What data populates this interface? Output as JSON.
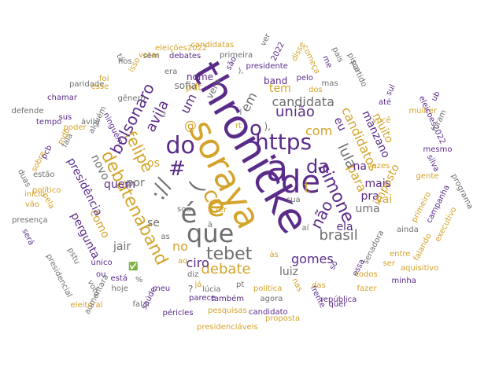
{
  "colors": {
    "gold": "#d4a32a",
    "purple": "#5b2b8a",
    "gray": "#6e6e6e"
  },
  "words": [
    {
      "t": "thronicke",
      "c": "purple"
    },
    {
      "t": "soraya",
      "c": "gold"
    },
    {
      "t": "a",
      "c": "purple"
    },
    {
      "t": "de",
      "c": "purple"
    },
    {
      "t": "é",
      "c": "gray"
    },
    {
      "t": "e",
      "c": "gold"
    },
    {
      "t": "que",
      "c": "gray"
    },
    {
      "t": "do",
      "c": "purple"
    },
    {
      "t": "https",
      "c": "purple"
    },
    {
      "t": "debatenaband",
      "c": "gold"
    },
    {
      "t": "felipe",
      "c": "gold"
    },
    {
      "t": "co",
      "c": "gold"
    },
    {
      "t": "da",
      "c": "purple"
    },
    {
      "t": "simone",
      "c": "purple"
    },
    {
      "t": "t",
      "c": "gold"
    },
    {
      "t": "o",
      "c": "purple"
    },
    {
      "t": "tebet",
      "c": "gray"
    },
    {
      "t": "bolsonaro",
      "c": "purple"
    },
    {
      "t": "#",
      "c": "purple"
    },
    {
      "t": "://",
      "c": "gray"
    },
    {
      "t": "(",
      "c": "gray"
    },
    {
      "t": "não",
      "c": "purple"
    },
    {
      "t": "lula",
      "c": "gray"
    },
    {
      "t": "brasil",
      "c": "gray"
    },
    {
      "t": "debate",
      "c": "gold"
    },
    {
      "t": "avila",
      "c": "purple"
    },
    {
      "t": "candidatos",
      "c": "gold"
    },
    {
      "t": "união",
      "c": "purple"
    },
    {
      "t": "candidata",
      "c": "gray"
    },
    {
      "t": "com",
      "c": "gold"
    },
    {
      "t": "para",
      "c": "gold"
    },
    {
      "t": "ciro",
      "c": "purple"
    },
    {
      "t": "gomes",
      "c": "purple"
    },
    {
      "t": "no",
      "c": "gold"
    },
    {
      "t": "um",
      "c": "purple"
    },
    {
      "t": "em",
      "c": "gray"
    },
    {
      "t": "quem",
      "c": "purple"
    },
    {
      "t": "novo",
      "c": "gray"
    },
    {
      "t": "@",
      "c": "gold"
    },
    {
      "t": "na",
      "c": "purple"
    },
    {
      "t": "eu",
      "c": "purple"
    },
    {
      "t": "uma",
      "c": "gray"
    },
    {
      "t": "pra",
      "c": "purple"
    },
    {
      "t": "mais",
      "c": "purple"
    },
    {
      "t": "ela",
      "c": "purple"
    },
    {
      "t": "luiz",
      "c": "gray"
    },
    {
      "t": "jair",
      "c": "gray"
    },
    {
      "t": "se",
      "c": "gray"
    },
    {
      "t": "por",
      "c": "gray"
    },
    {
      "t": "os",
      "c": "gold"
    },
    {
      "t": "tem",
      "c": "gold"
    },
    {
      "t": "vai",
      "c": "gold"
    },
    {
      "t": "como",
      "c": "gold"
    },
    {
      "t": "pergunta",
      "c": "purple"
    },
    {
      "t": "presidência",
      "c": "purple"
    },
    {
      "t": "imposto",
      "c": "gold"
    },
    {
      "t": "manzano",
      "c": "purple"
    },
    {
      "t": "muito",
      "c": "gold"
    },
    {
      "t": "?",
      "c": "gray"
    },
    {
      "t": "),",
      "c": "gray"
    },
    {
      "t": "pdt",
      "c": "gold"
    },
    {
      "t": "band",
      "c": "purple"
    },
    {
      "t": "vera",
      "c": "gray"
    },
    {
      "t": "nome",
      "c": "purple"
    },
    {
      "t": "sofia",
      "c": "gray"
    },
    {
      "t": "debates",
      "c": "purple"
    },
    {
      "t": "votar",
      "c": "gold"
    },
    {
      "t": "eleições2022",
      "c": "gold"
    },
    {
      "t": "candidatas",
      "c": "gold"
    },
    {
      "t": "primeira",
      "c": "gray"
    },
    {
      "t": "presidente",
      "c": "purple"
    },
    {
      "t": "são",
      "c": "purple"
    },
    {
      "t": "ver",
      "c": "gray"
    },
    {
      "t": "2022",
      "c": "purple"
    },
    {
      "t": "disse",
      "c": "gold"
    },
    {
      "t": "começa",
      "c": "gold"
    },
    {
      "t": "me",
      "c": "purple"
    },
    {
      "t": "pais",
      "c": "gray"
    },
    {
      "t": "pisca",
      "c": "gray"
    },
    {
      "t": "partido",
      "c": "gray"
    },
    {
      "t": "até",
      "c": "purple"
    },
    {
      "t": "sul",
      "c": "purple"
    },
    {
      "t": "você",
      "c": "gold"
    },
    {
      "t": "mulher",
      "c": "gold"
    },
    {
      "t": "eleicoes2022",
      "c": "purple"
    },
    {
      "t": "mesmo",
      "c": "purple"
    },
    {
      "t": "foram",
      "c": "gray"
    },
    {
      "t": "ub",
      "c": "purple"
    },
    {
      "t": "silva",
      "c": "purple"
    },
    {
      "t": "vezes",
      "c": "gold"
    },
    {
      "t": "gente",
      "c": "gold"
    },
    {
      "t": "programa",
      "c": "gray"
    },
    {
      "t": "campanha",
      "c": "purple"
    },
    {
      "t": "primeiro",
      "c": "gold"
    },
    {
      "t": "executivo",
      "c": "gold"
    },
    {
      "t": "ainda",
      "c": "gray"
    },
    {
      "t": "entre",
      "c": "gold"
    },
    {
      "t": "falando",
      "c": "gold"
    },
    {
      "t": "aquisitivo",
      "c": "gold"
    },
    {
      "t": "minha",
      "c": "purple"
    },
    {
      "t": "ser",
      "c": "gold"
    },
    {
      "t": "senadora",
      "c": "gray"
    },
    {
      "t": "essa",
      "c": "purple"
    },
    {
      "t": "todos",
      "c": "gold"
    },
    {
      "t": "fazer",
      "c": "gold"
    },
    {
      "t": "só",
      "c": "purple"
    },
    {
      "t": "república",
      "c": "purple"
    },
    {
      "t": "quer",
      "c": "purple"
    },
    {
      "t": "frente",
      "c": "purple"
    },
    {
      "t": "nas",
      "c": "gold"
    },
    {
      "t": "das",
      "c": "gold"
    },
    {
      "t": "dos",
      "c": "gold"
    },
    {
      "t": "pelo",
      "c": "purple"
    },
    {
      "t": "mas",
      "c": "gray"
    },
    {
      "t": "ter",
      "c": "gold"
    },
    {
      "t": "sua",
      "c": "gray"
    },
    {
      "t": "aí",
      "c": "gray"
    },
    {
      "t": "política",
      "c": "gold"
    },
    {
      "t": "agora",
      "c": "gray"
    },
    {
      "t": "proposta",
      "c": "gold"
    },
    {
      "t": "candidato",
      "c": "purple"
    },
    {
      "t": "pesquisas",
      "c": "gold"
    },
    {
      "t": "presidenciáveis",
      "c": "gold"
    },
    {
      "t": "péricles",
      "c": "purple"
    },
    {
      "t": "também",
      "c": "purple"
    },
    {
      "t": "parece",
      "c": "purple"
    },
    {
      "t": "falar",
      "c": "gray"
    },
    {
      "t": "já",
      "c": "gold"
    },
    {
      "t": "saúde",
      "c": "purple"
    },
    {
      "t": "meu",
      "c": "purple"
    },
    {
      "t": "lúcia",
      "c": "gray"
    },
    {
      "t": "pt",
      "c": "gray"
    },
    {
      "t": "diz",
      "c": "gray"
    },
    {
      "t": "ao",
      "c": "gold"
    },
    {
      "t": "as",
      "c": "gray"
    },
    {
      "t": "à",
      "c": "gray"
    },
    {
      "t": "sou",
      "c": "gray"
    },
    {
      "t": "às",
      "c": "gold"
    },
    {
      "t": "%",
      "c": "gray"
    },
    {
      "t": "está",
      "c": "purple"
    },
    {
      "t": "ou",
      "c": "purple"
    },
    {
      "t": "✅",
      "c": "gray"
    },
    {
      "t": "único",
      "c": "purple"
    },
    {
      "t": "hoje",
      "c": "gray"
    },
    {
      "t": "eleitoral",
      "c": "gold"
    },
    {
      "t": "voto",
      "c": "gray"
    },
    {
      "t": "aumentará",
      "c": "gray"
    },
    {
      "t": "presidencial",
      "c": "gray"
    },
    {
      "t": "pstu",
      "c": "gray"
    },
    {
      "t": "inicio",
      "c": "gold"
    },
    {
      "t": "pela",
      "c": "gold"
    },
    {
      "t": "vão",
      "c": "gold"
    },
    {
      "t": "presença",
      "c": "gray"
    },
    {
      "t": "será",
      "c": "purple"
    },
    {
      "t": "duas",
      "c": "gray"
    },
    {
      "t": "estão",
      "c": "gray"
    },
    {
      "t": "político",
      "c": "gold"
    },
    {
      "t": "sobre",
      "c": "gold"
    },
    {
      "t": "mdb",
      "c": "gold"
    },
    {
      "t": "fala",
      "c": "gray"
    },
    {
      "t": "pcb",
      "c": "purple"
    },
    {
      "t": "tempo",
      "c": "purple"
    },
    {
      "t": "sus",
      "c": "purple"
    },
    {
      "t": "poder",
      "c": "gold"
    },
    {
      "t": "ávila",
      "c": "gray"
    },
    {
      "t": "alguém",
      "c": "gray"
    },
    {
      "t": "ninguém",
      "c": "purple"
    },
    {
      "t": "chamar",
      "c": "purple"
    },
    {
      "t": "defende",
      "c": "gray"
    },
    {
      "t": "paridade",
      "c": "gray"
    },
    {
      "t": "esse",
      "c": "gold"
    },
    {
      "t": "foi",
      "c": "gold"
    },
    {
      "t": "isso",
      "c": "gold"
    },
    {
      "t": "nos",
      "c": "gray"
    },
    {
      "t": "gênero",
      "c": "gray"
    },
    {
      "t": "era",
      "c": "gray"
    },
    {
      "t": "sem",
      "c": "gray"
    },
    {
      "t": "tá",
      "c": "gray"
    },
    {
      "t": "2",
      "c": "gray"
    },
    {
      "t": "rt",
      "c": "gold"
    },
    {
      "t": "l",
      "c": "gray"
    },
    {
      "t": "),",
      "c": "gray"
    }
  ]
}
